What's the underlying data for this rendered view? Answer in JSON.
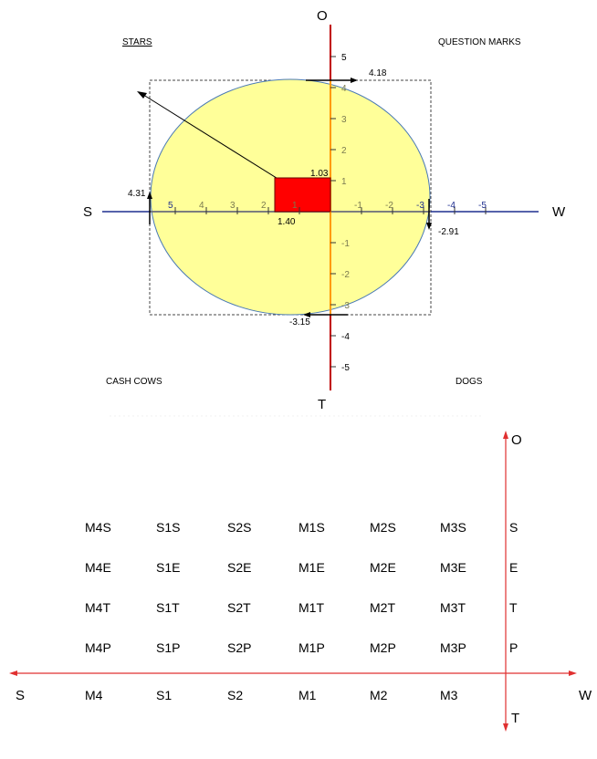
{
  "top_diagram": {
    "axes": {
      "north": "O",
      "south": "T",
      "west": "S",
      "east": "W"
    },
    "quadrants": {
      "top_left": "STARS",
      "top_right": "QUESTION MARKS",
      "bottom_left": "CASH COWS",
      "bottom_right": "DOGS"
    },
    "horizontal_ticks": [
      {
        "value": 5,
        "label": "5"
      },
      {
        "value": 4,
        "label": "4"
      },
      {
        "value": 3,
        "label": "3"
      },
      {
        "value": 2,
        "label": "2"
      },
      {
        "value": 1,
        "label": "1"
      },
      {
        "value": -1,
        "label": "-1"
      },
      {
        "value": -2,
        "label": "-2"
      },
      {
        "value": -3,
        "label": "-3"
      },
      {
        "value": -4,
        "label": "-4"
      },
      {
        "value": -5,
        "label": "-5"
      }
    ],
    "vertical_ticks": [
      {
        "value": 5,
        "label": "5"
      },
      {
        "value": 4,
        "label": "4"
      },
      {
        "value": 3,
        "label": "3"
      },
      {
        "value": 2,
        "label": "2"
      },
      {
        "value": 1,
        "label": "1"
      },
      {
        "value": -1,
        "label": "-1"
      },
      {
        "value": -2,
        "label": "-2"
      },
      {
        "value": -3,
        "label": "-3"
      },
      {
        "value": -4,
        "label": "-4"
      },
      {
        "value": -5,
        "label": "-5"
      }
    ],
    "extents": {
      "top": {
        "value": 4.18,
        "label": "4.18"
      },
      "bottom": {
        "value": -3.15,
        "label": "-3.15"
      },
      "left": {
        "value": 4.31,
        "label": "4.31"
      },
      "right": {
        "value": -2.91,
        "label": "-2.91"
      }
    },
    "rectangle": {
      "width": {
        "value": 1.4,
        "label": "1.40"
      },
      "height": {
        "value": 1.03,
        "label": "1.03"
      },
      "color": "#ff0000"
    },
    "colors": {
      "ellipse_fill": "#ffff99",
      "ellipse_stroke": "#4a7ab5",
      "vertical_axis": "#c00000",
      "horizontal_axis": "#1f2f8f",
      "rectangle": "#ff0000"
    }
  },
  "bottom_matrix": {
    "axes": {
      "north": "O",
      "south": "T",
      "west": "S",
      "east": "W"
    },
    "rows": [
      [
        "M4S",
        "S1S",
        "S2S",
        "M1S",
        "M2S",
        "M3S"
      ],
      [
        "M4E",
        "S1E",
        "S2E",
        "M1E",
        "M2E",
        "M3E"
      ],
      [
        "M4T",
        "S1T",
        "S2T",
        "M1T",
        "M2T",
        "M3T"
      ],
      [
        "M4P",
        "S1P",
        "S2P",
        "M1P",
        "M2P",
        "M3P"
      ],
      [
        "M4",
        "S1",
        "S2",
        "M1",
        "M2",
        "M3"
      ]
    ],
    "row_labels": [
      "S",
      "E",
      "T",
      "P"
    ],
    "axis_color": "#e03030"
  }
}
